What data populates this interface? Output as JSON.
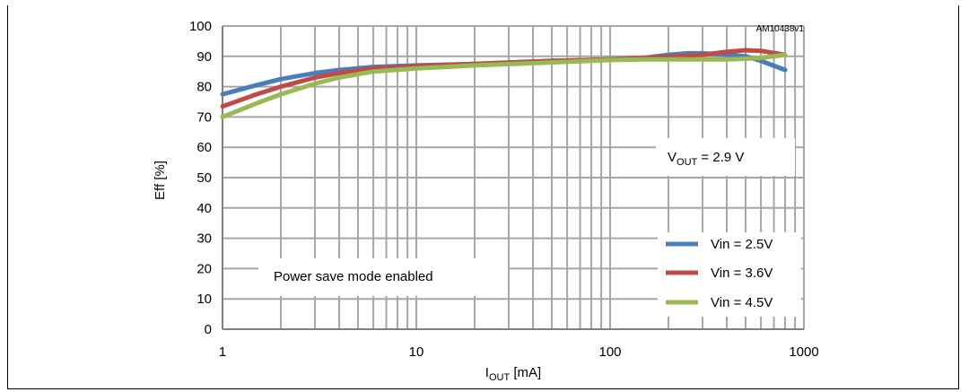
{
  "chart_data": {
    "type": "line",
    "code": "AM10438v1",
    "xlabel_main": "I",
    "xlabel_sub": "OUT",
    "xlabel_unit": " [mA]",
    "ylabel": "Eff  [%]",
    "xscale": "log",
    "xlim": [
      1,
      1000
    ],
    "ylim": [
      0,
      100
    ],
    "x_ticks": [
      "1",
      "10",
      "100",
      "1000"
    ],
    "y_ticks": [
      "0",
      "10",
      "20",
      "30",
      "40",
      "50",
      "60",
      "70",
      "80",
      "90",
      "100"
    ],
    "grid": true,
    "legend_position": "bottom-right",
    "annotations": {
      "vout_main": "V",
      "vout_sub": "OUT",
      "vout_rest": " = 2.9 V",
      "mode": "Power save mode enabled"
    },
    "series": [
      {
        "name": "Vin = 2.5V",
        "color": "#4a7ebb",
        "x": [
          1,
          1.5,
          2,
          3,
          4,
          6,
          10,
          20,
          50,
          100,
          150,
          200,
          250,
          300,
          400,
          500,
          600,
          800
        ],
        "y": [
          77.5,
          80.5,
          82.5,
          84.5,
          85.5,
          86.5,
          87.0,
          87.5,
          88.5,
          89.0,
          89.5,
          90.5,
          91.0,
          91.0,
          90.5,
          90.0,
          88.5,
          85.5
        ]
      },
      {
        "name": "Vin = 3.6V",
        "color": "#be4b48",
        "x": [
          1,
          1.5,
          2,
          3,
          4,
          6,
          10,
          20,
          50,
          100,
          150,
          200,
          300,
          400,
          500,
          600,
          800
        ],
        "y": [
          73.5,
          77.5,
          80.0,
          83.0,
          84.5,
          86.0,
          86.8,
          87.5,
          88.5,
          89.0,
          89.5,
          89.8,
          90.5,
          91.5,
          92.0,
          91.8,
          90.5
        ]
      },
      {
        "name": "Vin = 4.5V",
        "color": "#98b954",
        "x": [
          1,
          1.5,
          2,
          3,
          4,
          6,
          10,
          20,
          50,
          100,
          150,
          200,
          300,
          400,
          500,
          600,
          800
        ],
        "y": [
          70.0,
          74.5,
          77.5,
          81.0,
          83.0,
          85.0,
          86.0,
          87.0,
          88.0,
          88.8,
          89.0,
          89.0,
          89.0,
          89.0,
          89.2,
          89.5,
          90.5
        ]
      }
    ]
  }
}
